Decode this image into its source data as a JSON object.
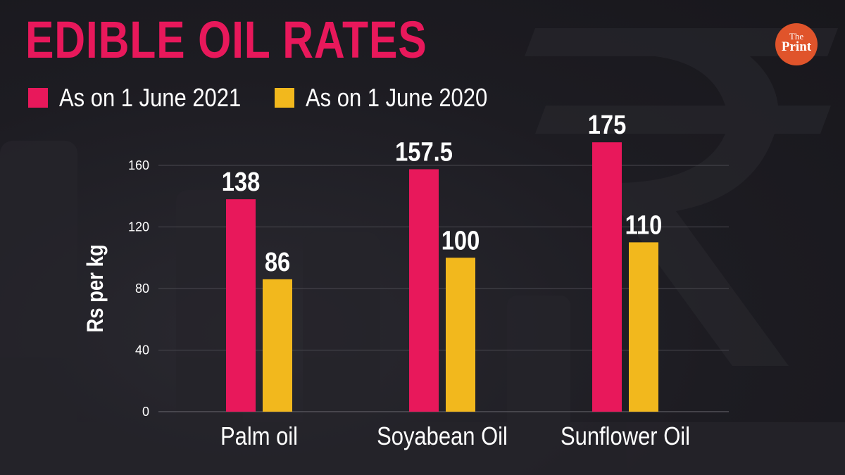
{
  "colors": {
    "accent": "#e8185b",
    "series_2021": "#e8185b",
    "series_2020": "#f2b81d",
    "logo": "#e0542b",
    "background": "#1c1b21"
  },
  "header": {
    "title": "EDIBLE OIL RATES"
  },
  "logo": {
    "line1": "The",
    "line2": "Print"
  },
  "chart_data": {
    "type": "bar",
    "title": "EDIBLE OIL RATES",
    "xlabel": "",
    "ylabel": "Rs per kg",
    "ylim": [
      0,
      160
    ],
    "yticks": [
      0,
      40,
      80,
      120,
      160
    ],
    "grid": true,
    "legend_position": "top-left",
    "categories": [
      "Palm oil",
      "Soyabean Oil",
      "Sunflower Oil"
    ],
    "series": [
      {
        "name": "As on 1 June 2021",
        "color": "#e8185b",
        "values": [
          138,
          157.5,
          175
        ],
        "labels": [
          "138",
          "157.5",
          "175"
        ]
      },
      {
        "name": "As on 1 June 2020",
        "color": "#f2b81d",
        "values": [
          86,
          100,
          110
        ],
        "labels": [
          "86",
          "100",
          "110"
        ]
      }
    ]
  }
}
